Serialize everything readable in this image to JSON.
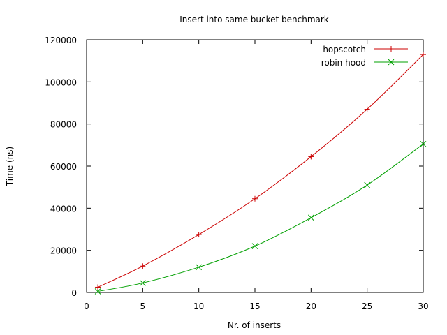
{
  "chart_data": {
    "type": "line",
    "title": "Insert into same bucket benchmark",
    "xlabel": "Nr. of inserts",
    "ylabel": "Time (ns)",
    "xlim": [
      0,
      30
    ],
    "ylim": [
      0,
      120000
    ],
    "xticks": [
      0,
      5,
      10,
      15,
      20,
      25,
      30
    ],
    "yticks": [
      0,
      20000,
      40000,
      60000,
      80000,
      100000,
      120000
    ],
    "grid": false,
    "legend_position": "top-right",
    "series": [
      {
        "name": "hopscotch",
        "color": "#cc0000",
        "marker": "plus",
        "x": [
          1,
          5,
          10,
          15,
          20,
          25,
          30
        ],
        "y": [
          2500,
          12500,
          27500,
          44500,
          64500,
          87000,
          113000
        ]
      },
      {
        "name": "robin hood",
        "color": "#00a000",
        "marker": "cross",
        "x": [
          1,
          5,
          10,
          15,
          20,
          25,
          30
        ],
        "y": [
          500,
          4500,
          12000,
          22000,
          35500,
          51000,
          70500
        ]
      }
    ]
  }
}
